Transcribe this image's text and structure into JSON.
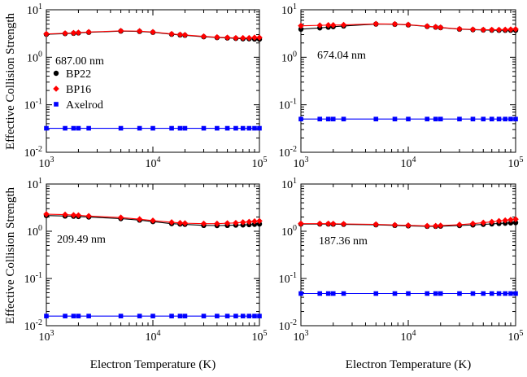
{
  "figure": {
    "ylabel": "Effective Collision Strength",
    "xlabel": "Electron Temperature (K)"
  },
  "legend": {
    "entries": [
      {
        "name": "BP22",
        "color": "#000000",
        "marker": "circle"
      },
      {
        "name": "BP16",
        "color": "#ff0000",
        "marker": "diamond"
      },
      {
        "name": "Axelrod",
        "color": "#0000ff",
        "marker": "square"
      }
    ]
  },
  "axes": {
    "xticks": {
      "base": "10",
      "exps": [
        "3",
        "4",
        "5"
      ]
    },
    "yticks": {
      "base": "10",
      "exps": [
        "-2",
        "-1",
        "0",
        "1"
      ]
    }
  },
  "chart_data": [
    {
      "type": "line",
      "title": "687.00 nm",
      "xscale": "log",
      "yscale": "log",
      "xlim": [
        1000,
        100000
      ],
      "ylim": [
        0.01,
        10
      ],
      "x": [
        1000,
        1500,
        1800,
        2000,
        2500,
        5000,
        7500,
        10000,
        15000,
        18000,
        20000,
        30000,
        40000,
        50000,
        60000,
        70000,
        80000,
        90000,
        100000
      ],
      "series": [
        {
          "name": "BP22",
          "values": [
            3.05,
            3.15,
            3.2,
            3.25,
            3.35,
            3.55,
            3.5,
            3.35,
            3.05,
            2.95,
            2.9,
            2.7,
            2.6,
            2.55,
            2.5,
            2.45,
            2.45,
            2.42,
            2.4
          ]
        },
        {
          "name": "BP16",
          "values": [
            3.1,
            3.2,
            3.25,
            3.3,
            3.4,
            3.6,
            3.55,
            3.4,
            3.1,
            3.0,
            2.95,
            2.75,
            2.65,
            2.6,
            2.55,
            2.55,
            2.55,
            2.6,
            2.6
          ]
        },
        {
          "name": "Axelrod",
          "values": [
            0.032,
            0.032,
            0.032,
            0.032,
            0.032,
            0.032,
            0.032,
            0.032,
            0.032,
            0.032,
            0.032,
            0.032,
            0.032,
            0.032,
            0.032,
            0.032,
            0.032,
            0.032,
            0.032
          ]
        }
      ]
    },
    {
      "type": "line",
      "title": "674.04 nm",
      "xscale": "log",
      "yscale": "log",
      "xlim": [
        1000,
        100000
      ],
      "ylim": [
        0.01,
        10
      ],
      "x": [
        1000,
        1500,
        1800,
        2000,
        2500,
        5000,
        7500,
        10000,
        15000,
        18000,
        20000,
        30000,
        40000,
        50000,
        60000,
        70000,
        80000,
        90000,
        100000
      ],
      "series": [
        {
          "name": "BP22",
          "values": [
            3.9,
            4.15,
            4.3,
            4.4,
            4.55,
            5.0,
            4.95,
            4.8,
            4.45,
            4.3,
            4.2,
            3.9,
            3.8,
            3.75,
            3.72,
            3.7,
            3.7,
            3.7,
            3.7
          ]
        },
        {
          "name": "BP16",
          "values": [
            4.6,
            4.7,
            4.75,
            4.75,
            4.8,
            5.05,
            5.0,
            4.85,
            4.5,
            4.35,
            4.25,
            3.95,
            3.85,
            3.8,
            3.8,
            3.8,
            3.82,
            3.85,
            3.9
          ]
        },
        {
          "name": "Axelrod",
          "values": [
            0.05,
            0.05,
            0.05,
            0.05,
            0.05,
            0.05,
            0.05,
            0.05,
            0.05,
            0.05,
            0.05,
            0.05,
            0.05,
            0.05,
            0.05,
            0.05,
            0.05,
            0.05,
            0.05
          ]
        }
      ]
    },
    {
      "type": "line",
      "title": "209.49 nm",
      "xscale": "log",
      "yscale": "log",
      "xlim": [
        1000,
        100000
      ],
      "ylim": [
        0.01,
        10
      ],
      "x": [
        1000,
        1500,
        1800,
        2000,
        2500,
        5000,
        7500,
        10000,
        15000,
        18000,
        20000,
        30000,
        40000,
        50000,
        60000,
        70000,
        80000,
        90000,
        100000
      ],
      "series": [
        {
          "name": "BP22",
          "values": [
            2.15,
            2.1,
            2.08,
            2.05,
            2.0,
            1.85,
            1.72,
            1.6,
            1.45,
            1.42,
            1.4,
            1.33,
            1.32,
            1.33,
            1.35,
            1.36,
            1.38,
            1.4,
            1.42
          ]
        },
        {
          "name": "BP16",
          "values": [
            2.3,
            2.25,
            2.2,
            2.18,
            2.1,
            1.95,
            1.8,
            1.68,
            1.55,
            1.5,
            1.48,
            1.45,
            1.45,
            1.48,
            1.5,
            1.55,
            1.58,
            1.62,
            1.65
          ]
        },
        {
          "name": "Axelrod",
          "values": [
            0.016,
            0.016,
            0.016,
            0.016,
            0.016,
            0.016,
            0.016,
            0.016,
            0.016,
            0.016,
            0.016,
            0.016,
            0.016,
            0.016,
            0.016,
            0.016,
            0.016,
            0.016,
            0.016
          ]
        }
      ]
    },
    {
      "type": "line",
      "title": "187.36 nm",
      "xscale": "log",
      "yscale": "log",
      "xlim": [
        1000,
        100000
      ],
      "ylim": [
        0.01,
        10
      ],
      "x": [
        1000,
        1500,
        1800,
        2000,
        2500,
        5000,
        7500,
        10000,
        15000,
        18000,
        20000,
        30000,
        40000,
        50000,
        60000,
        70000,
        80000,
        90000,
        100000
      ],
      "series": [
        {
          "name": "BP22",
          "values": [
            1.42,
            1.42,
            1.42,
            1.41,
            1.4,
            1.37,
            1.33,
            1.3,
            1.27,
            1.27,
            1.28,
            1.32,
            1.36,
            1.4,
            1.43,
            1.46,
            1.48,
            1.5,
            1.52
          ]
        },
        {
          "name": "BP16",
          "values": [
            1.45,
            1.45,
            1.45,
            1.44,
            1.43,
            1.4,
            1.36,
            1.33,
            1.3,
            1.3,
            1.32,
            1.38,
            1.45,
            1.52,
            1.58,
            1.65,
            1.7,
            1.75,
            1.8
          ]
        },
        {
          "name": "Axelrod",
          "values": [
            0.048,
            0.048,
            0.048,
            0.048,
            0.048,
            0.048,
            0.048,
            0.048,
            0.048,
            0.048,
            0.048,
            0.048,
            0.048,
            0.048,
            0.048,
            0.048,
            0.048,
            0.048,
            0.048
          ]
        }
      ]
    }
  ]
}
